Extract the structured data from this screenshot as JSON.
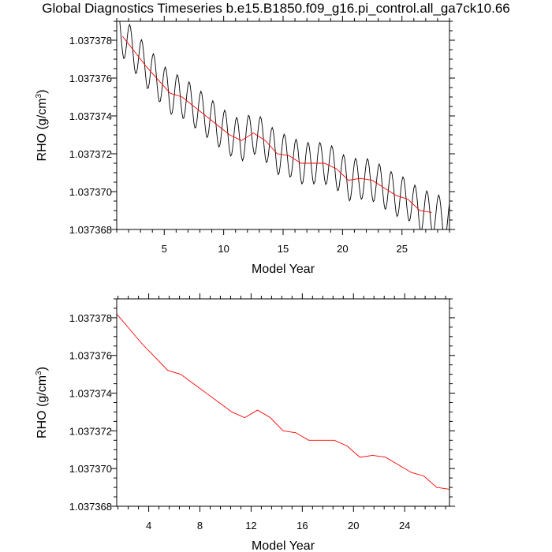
{
  "page": {
    "title": "Global Diagnostics Timeseries b.e15.B1850.f09_g16.pi_control.all_ga7ck10.66"
  },
  "colors": {
    "monthly": "#000000",
    "annual": "#ff0000",
    "axis": "#000000"
  },
  "chart_data": [
    {
      "type": "line",
      "title": "",
      "xlabel": "Model Year",
      "ylabel_main": "RHO (g/cm",
      "ylabel_sup": "3",
      "ylabel_close": ")",
      "xlim": [
        1,
        29
      ],
      "ylim": [
        1.037368,
        1.037379
      ],
      "xticks": [
        5,
        10,
        15,
        20,
        25
      ],
      "xtick_labels": [
        "5",
        "10",
        "15",
        "20",
        "25"
      ],
      "yticks": [
        1.037368,
        1.03737,
        1.037372,
        1.037374,
        1.037376,
        1.037378
      ],
      "ytick_labels": [
        "1.037368",
        "1.037370",
        "1.037372",
        "1.037374",
        "1.037376",
        "1.037378"
      ],
      "series": [
        {
          "name": "monthly",
          "color": "#000000",
          "seasonal_amplitude": 1.1e-06,
          "anchor_years": [
            1.0,
            1.5,
            2.5,
            3.5,
            4.5,
            5.5,
            6.5,
            7.5,
            8.5,
            9.5,
            10.5,
            11.5,
            12.5,
            13.5,
            14.5,
            15.5,
            16.5,
            17.5,
            18.5,
            19.5,
            20.5,
            21.5,
            22.5,
            23.5,
            24.5,
            25.5,
            26.5,
            27.5,
            28.5,
            29.0
          ],
          "anchor_values": [
            1.0373786,
            1.0373782,
            1.0373774,
            1.0373766,
            1.0373759,
            1.0373752,
            1.037375,
            1.0373745,
            1.037374,
            1.0373735,
            1.037373,
            1.0373727,
            1.0373731,
            1.0373727,
            1.037372,
            1.0373719,
            1.0373715,
            1.0373715,
            1.0373715,
            1.0373712,
            1.0373706,
            1.0373707,
            1.0373706,
            1.0373702,
            1.0373698,
            1.0373696,
            1.037369,
            1.0373689,
            1.0373686,
            1.0373685
          ]
        },
        {
          "name": "annual",
          "color": "#ff0000",
          "x": [
            1.5,
            2.5,
            3.5,
            4.5,
            5.5,
            6.5,
            7.5,
            8.5,
            9.5,
            10.5,
            11.5,
            12.5,
            13.5,
            14.5,
            15.5,
            16.5,
            17.5,
            18.5,
            19.5,
            20.5,
            21.5,
            22.5,
            23.5,
            24.5,
            25.5,
            26.5,
            27.5
          ],
          "y": [
            1.0373782,
            1.0373774,
            1.0373766,
            1.0373759,
            1.0373752,
            1.037375,
            1.0373745,
            1.037374,
            1.0373735,
            1.037373,
            1.0373727,
            1.0373731,
            1.0373727,
            1.037372,
            1.0373719,
            1.0373715,
            1.0373715,
            1.0373715,
            1.0373712,
            1.0373706,
            1.0373707,
            1.0373706,
            1.0373702,
            1.0373698,
            1.0373696,
            1.037369,
            1.0373689
          ]
        }
      ]
    },
    {
      "type": "line",
      "title": "",
      "xlabel": "Model Year",
      "ylabel_main": "RHO (g/cm",
      "ylabel_sup": "3",
      "ylabel_close": ")",
      "xlim": [
        1.5,
        27.5
      ],
      "ylim": [
        1.037368,
        1.037379
      ],
      "xticks": [
        4,
        8,
        12,
        16,
        20,
        24
      ],
      "xtick_labels": [
        "4",
        "8",
        "12",
        "16",
        "20",
        "24"
      ],
      "yticks": [
        1.037368,
        1.03737,
        1.037372,
        1.037374,
        1.037376,
        1.037378
      ],
      "ytick_labels": [
        "1.037368",
        "1.037370",
        "1.037372",
        "1.037374",
        "1.037376",
        "1.037378"
      ],
      "series": [
        {
          "name": "annual",
          "color": "#ff0000",
          "x": [
            1.5,
            2.5,
            3.5,
            4.5,
            5.5,
            6.5,
            7.5,
            8.5,
            9.5,
            10.5,
            11.5,
            12.5,
            13.5,
            14.5,
            15.5,
            16.5,
            17.5,
            18.5,
            19.5,
            20.5,
            21.5,
            22.5,
            23.5,
            24.5,
            25.5,
            26.5,
            27.5
          ],
          "y": [
            1.0373782,
            1.0373774,
            1.0373766,
            1.0373759,
            1.0373752,
            1.037375,
            1.0373745,
            1.037374,
            1.0373735,
            1.037373,
            1.0373727,
            1.0373731,
            1.0373727,
            1.037372,
            1.0373719,
            1.0373715,
            1.0373715,
            1.0373715,
            1.0373712,
            1.0373706,
            1.0373707,
            1.0373706,
            1.0373702,
            1.0373698,
            1.0373696,
            1.037369,
            1.0373689
          ]
        }
      ]
    }
  ]
}
